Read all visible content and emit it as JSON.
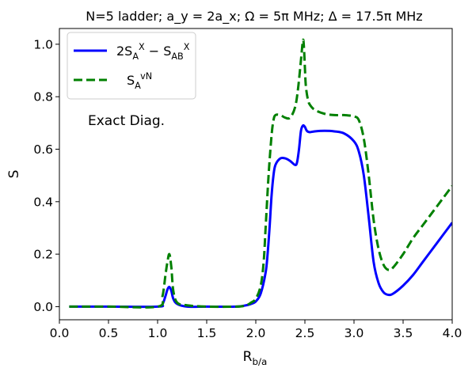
{
  "chart_data": {
    "type": "line",
    "title": "N=5 ladder; a_y = 2a_x; Ω = 5π MHz; Δ = 17.5π MHz",
    "xlabel": "R_b/a",
    "ylabel": "S",
    "xlim": [
      0.0,
      4.0
    ],
    "ylim": [
      -0.05,
      1.06
    ],
    "xticks": [
      0.0,
      0.5,
      1.0,
      1.5,
      2.0,
      2.5,
      3.0,
      3.5,
      4.0
    ],
    "xtick_labels": [
      "0.0",
      "0.5",
      "1.0",
      "1.5",
      "2.0",
      "2.5",
      "3.0",
      "3.5",
      "4.0"
    ],
    "yticks": [
      0.0,
      0.2,
      0.4,
      0.6,
      0.8,
      1.0
    ],
    "ytick_labels": [
      "0.0",
      "0.2",
      "0.4",
      "0.6",
      "0.8",
      "1.0"
    ],
    "grid": false,
    "legend_position": "upper-left",
    "annotation": "Exact Diag.",
    "series": [
      {
        "name": "2S_A^X − S_AB^X",
        "color": "#0000ff",
        "dash": "solid",
        "x": [
          0.1,
          0.5,
          1.0,
          1.05,
          1.08,
          1.1,
          1.12,
          1.14,
          1.16,
          1.2,
          1.3,
          1.5,
          1.8,
          1.9,
          1.95,
          2.0,
          2.05,
          2.1,
          2.12,
          2.14,
          2.16,
          2.18,
          2.2,
          2.25,
          2.3,
          2.35,
          2.4,
          2.42,
          2.44,
          2.46,
          2.48,
          2.5,
          2.52,
          2.55,
          2.6,
          2.7,
          2.8,
          2.9,
          3.0,
          3.05,
          3.1,
          3.15,
          3.2,
          3.25,
          3.3,
          3.35,
          3.4,
          3.5,
          3.6,
          3.7,
          3.8,
          3.9,
          4.0
        ],
        "y": [
          0.0,
          0.0,
          0.0,
          0.01,
          0.04,
          0.065,
          0.075,
          0.06,
          0.03,
          0.01,
          0.0,
          0.0,
          0.0,
          0.005,
          0.01,
          0.02,
          0.05,
          0.13,
          0.2,
          0.3,
          0.42,
          0.5,
          0.54,
          0.565,
          0.565,
          0.555,
          0.54,
          0.55,
          0.6,
          0.67,
          0.69,
          0.685,
          0.67,
          0.665,
          0.668,
          0.67,
          0.668,
          0.66,
          0.63,
          0.59,
          0.5,
          0.34,
          0.17,
          0.09,
          0.055,
          0.045,
          0.05,
          0.08,
          0.12,
          0.17,
          0.22,
          0.27,
          0.32
        ]
      },
      {
        "name": "S_A^vN",
        "color": "#008000",
        "dash": "dashed",
        "x": [
          0.1,
          0.5,
          1.0,
          1.05,
          1.08,
          1.1,
          1.12,
          1.14,
          1.16,
          1.2,
          1.3,
          1.5,
          1.8,
          1.9,
          1.95,
          2.0,
          2.05,
          2.08,
          2.1,
          2.13,
          2.16,
          2.18,
          2.2,
          2.25,
          2.3,
          2.35,
          2.4,
          2.43,
          2.46,
          2.48,
          2.49,
          2.5,
          2.51,
          2.53,
          2.55,
          2.6,
          2.7,
          2.8,
          2.9,
          3.0,
          3.05,
          3.1,
          3.15,
          3.2,
          3.25,
          3.3,
          3.35,
          3.4,
          3.5,
          3.6,
          3.7,
          3.8,
          3.9,
          4.0
        ],
        "y": [
          0.0,
          0.0,
          0.0,
          0.04,
          0.12,
          0.17,
          0.2,
          0.15,
          0.06,
          0.015,
          0.005,
          0.0,
          0.0,
          0.005,
          0.015,
          0.03,
          0.08,
          0.17,
          0.3,
          0.5,
          0.65,
          0.71,
          0.73,
          0.73,
          0.72,
          0.72,
          0.76,
          0.83,
          0.94,
          1.015,
          0.99,
          0.91,
          0.84,
          0.79,
          0.77,
          0.75,
          0.735,
          0.73,
          0.73,
          0.725,
          0.71,
          0.64,
          0.5,
          0.33,
          0.22,
          0.16,
          0.14,
          0.15,
          0.2,
          0.26,
          0.31,
          0.36,
          0.41,
          0.46
        ]
      }
    ]
  }
}
